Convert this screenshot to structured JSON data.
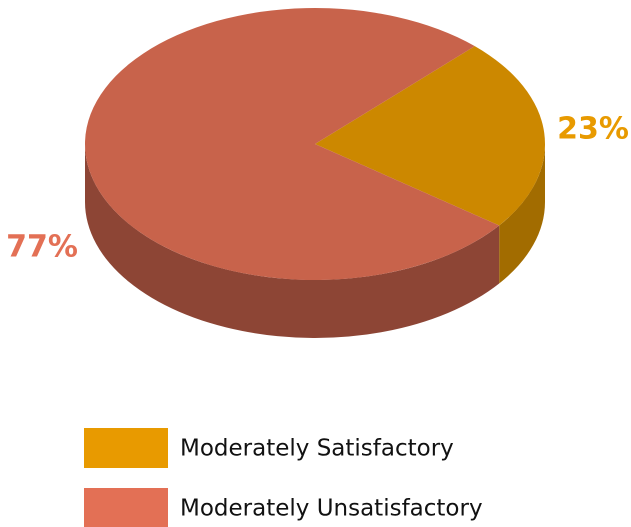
{
  "chart_data": {
    "type": "pie",
    "categories": [
      "Moderately Satisfactory",
      "Moderately Unsatisfactory"
    ],
    "values": [
      23,
      77
    ],
    "value_labels": [
      "23%",
      "77%"
    ],
    "colors": [
      "#e89a00",
      "#e37055"
    ],
    "legend": "bottom"
  }
}
